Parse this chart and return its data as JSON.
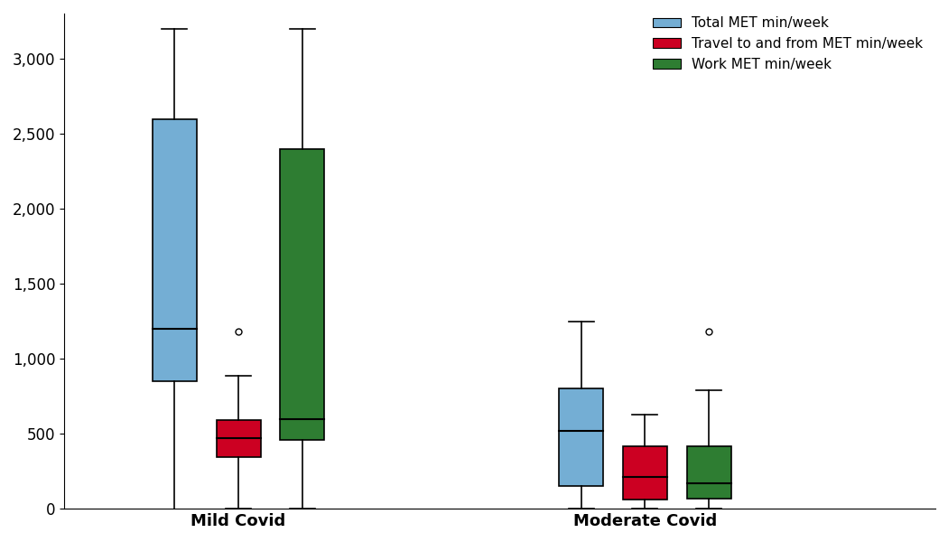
{
  "groups": [
    "Mild Covid",
    "Moderate Covid"
  ],
  "series": [
    {
      "name": "Total MET min/week",
      "color": "#74aed4",
      "edge_color": "#000000",
      "boxes": [
        {
          "whislo": 0,
          "q1": 850,
          "med": 1200,
          "q3": 2600,
          "whishi": 3200,
          "fliers": [],
          "no_lower_cap": true
        },
        {
          "whislo": 0,
          "q1": 150,
          "med": 520,
          "q3": 800,
          "whishi": 1250,
          "fliers": [],
          "no_lower_cap": false
        }
      ]
    },
    {
      "name": "Travel to and from MET min/week",
      "color": "#cc0022",
      "edge_color": "#000000",
      "boxes": [
        {
          "whislo": 0,
          "q1": 345,
          "med": 470,
          "q3": 590,
          "whishi": 890,
          "fliers": [
            1180
          ],
          "no_lower_cap": false
        },
        {
          "whislo": 0,
          "q1": 60,
          "med": 210,
          "q3": 415,
          "whishi": 630,
          "fliers": [],
          "no_lower_cap": false
        }
      ]
    },
    {
      "name": "Work MET min/week",
      "color": "#2e7d32",
      "edge_color": "#000000",
      "boxes": [
        {
          "whislo": 0,
          "q1": 460,
          "med": 600,
          "q3": 2400,
          "whishi": 3200,
          "fliers": [],
          "no_lower_cap": false
        },
        {
          "whislo": 0,
          "q1": 65,
          "med": 170,
          "q3": 415,
          "whishi": 790,
          "fliers": [
            1180
          ],
          "no_lower_cap": false
        }
      ]
    }
  ],
  "ylim": [
    0,
    3300
  ],
  "yticks": [
    0,
    500,
    1000,
    1500,
    2000,
    2500,
    3000
  ],
  "group_positions": [
    2.0,
    5.5
  ],
  "box_width": 0.38,
  "offsets": [
    -0.55,
    0.0,
    0.55
  ],
  "legend_colors": [
    "#74aed4",
    "#cc0022",
    "#2e7d32"
  ],
  "legend_labels": [
    "Total MET min/week",
    "Travel to and from MET min/week",
    "Work MET min/week"
  ],
  "background_color": "#ffffff",
  "tick_label_fontsize": 12,
  "legend_fontsize": 11,
  "group_label_fontsize": 13,
  "xlim": [
    0.5,
    8.0
  ]
}
